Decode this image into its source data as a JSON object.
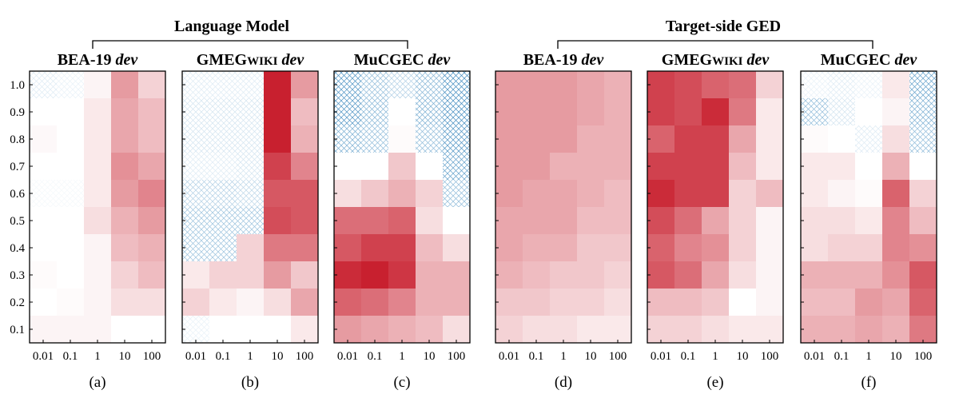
{
  "group_titles": [
    "Language Model",
    "Target-side GED"
  ],
  "chart_data": [
    {
      "type": "heatmap",
      "panel_label": "(a)",
      "title_main": "BEA-19",
      "title_small": "",
      "title_italic": "dev",
      "x_categories": [
        "0.01",
        "0.1",
        "1",
        "10",
        "100"
      ],
      "y_categories": [
        "1.0",
        "0.9",
        "0.8",
        "0.7",
        "0.6",
        "0.5",
        "0.4",
        "0.3",
        "0.2",
        "0.1"
      ],
      "values": [
        [
          -0.15,
          -0.1,
          0.05,
          0.45,
          0.2
        ],
        [
          0.0,
          0.0,
          0.1,
          0.4,
          0.3
        ],
        [
          0.03,
          0.0,
          0.1,
          0.4,
          0.3
        ],
        [
          0.0,
          0.0,
          0.1,
          0.5,
          0.4
        ],
        [
          -0.05,
          -0.05,
          0.1,
          0.45,
          0.55
        ],
        [
          0.0,
          0.0,
          0.15,
          0.35,
          0.45
        ],
        [
          0.0,
          0.0,
          0.05,
          0.3,
          0.35
        ],
        [
          0.02,
          0.0,
          0.05,
          0.2,
          0.3
        ],
        [
          0.0,
          0.02,
          0.05,
          0.15,
          0.15
        ],
        [
          0.05,
          0.05,
          0.05,
          0.0,
          0.0
        ]
      ]
    },
    {
      "type": "heatmap",
      "panel_label": "(b)",
      "title_main": "GMEG",
      "title_small": "WIKI",
      "title_italic": "dev",
      "x_categories": [
        "0.01",
        "0.1",
        "1",
        "10",
        "100"
      ],
      "y_categories": [
        "1.0",
        "0.9",
        "0.8",
        "0.7",
        "0.6",
        "0.5",
        "0.4",
        "0.3",
        "0.2",
        "0.1"
      ],
      "values": [
        [
          -0.15,
          -0.15,
          -0.15,
          1.0,
          0.45
        ],
        [
          -0.2,
          -0.2,
          -0.2,
          1.05,
          0.3
        ],
        [
          -0.2,
          -0.2,
          -0.2,
          1.05,
          0.35
        ],
        [
          -0.15,
          -0.15,
          -0.2,
          0.85,
          0.55
        ],
        [
          -0.35,
          -0.35,
          -0.3,
          0.75,
          0.75
        ],
        [
          -0.45,
          -0.45,
          -0.45,
          0.8,
          0.75
        ],
        [
          -0.45,
          -0.45,
          0.2,
          0.6,
          0.6
        ],
        [
          0.1,
          0.2,
          0.2,
          0.45,
          0.25
        ],
        [
          0.2,
          0.1,
          0.05,
          0.15,
          0.4
        ],
        [
          -0.1,
          0.0,
          0.0,
          0.0,
          0.1
        ]
      ]
    },
    {
      "type": "heatmap",
      "panel_label": "(c)",
      "title_main": "MuCGEC",
      "title_small": "",
      "title_italic": "dev",
      "x_categories": [
        "0.01",
        "0.1",
        "1",
        "10",
        "100"
      ],
      "y_categories": [
        "1.0",
        "0.9",
        "0.8",
        "0.7",
        "0.6",
        "0.5",
        "0.4",
        "0.3",
        "0.2",
        "0.1"
      ],
      "values": [
        [
          -0.8,
          -0.5,
          -0.35,
          -0.55,
          -0.85
        ],
        [
          -0.8,
          -0.55,
          0.0,
          -0.6,
          -0.85
        ],
        [
          -0.6,
          -0.5,
          0.02,
          -0.5,
          -0.8
        ],
        [
          0.0,
          0.0,
          0.25,
          0.0,
          -0.7
        ],
        [
          0.15,
          0.25,
          0.35,
          0.2,
          -0.5
        ],
        [
          0.65,
          0.65,
          0.7,
          0.15,
          0.0
        ],
        [
          0.75,
          0.85,
          0.85,
          0.3,
          0.15
        ],
        [
          0.95,
          1.0,
          0.9,
          0.35,
          0.35
        ],
        [
          0.7,
          0.65,
          0.55,
          0.35,
          0.35
        ],
        [
          0.45,
          0.4,
          0.35,
          0.3,
          0.15
        ]
      ]
    },
    {
      "type": "heatmap",
      "panel_label": "(d)",
      "title_main": "BEA-19",
      "title_small": "",
      "title_italic": "dev",
      "x_categories": [
        "0.01",
        "0.1",
        "1",
        "10",
        "100"
      ],
      "y_categories": [
        "1.0",
        "0.9",
        "0.8",
        "0.7",
        "0.6",
        "0.5",
        "0.4",
        "0.3",
        "0.2",
        "0.1"
      ],
      "values": [
        [
          0.45,
          0.45,
          0.45,
          0.4,
          0.35
        ],
        [
          0.45,
          0.45,
          0.45,
          0.4,
          0.35
        ],
        [
          0.45,
          0.45,
          0.45,
          0.35,
          0.35
        ],
        [
          0.45,
          0.45,
          0.35,
          0.35,
          0.35
        ],
        [
          0.45,
          0.4,
          0.4,
          0.35,
          0.3
        ],
        [
          0.4,
          0.4,
          0.4,
          0.3,
          0.3
        ],
        [
          0.4,
          0.35,
          0.35,
          0.25,
          0.25
        ],
        [
          0.35,
          0.3,
          0.25,
          0.25,
          0.2
        ],
        [
          0.25,
          0.25,
          0.2,
          0.2,
          0.15
        ],
        [
          0.2,
          0.15,
          0.15,
          0.1,
          0.1
        ]
      ]
    },
    {
      "type": "heatmap",
      "panel_label": "(e)",
      "title_main": "GMEG",
      "title_small": "WIKI",
      "title_italic": "dev",
      "x_categories": [
        "0.01",
        "0.1",
        "1",
        "10",
        "100"
      ],
      "y_categories": [
        "1.0",
        "0.9",
        "0.8",
        "0.7",
        "0.6",
        "0.5",
        "0.4",
        "0.3",
        "0.2",
        "0.1"
      ],
      "values": [
        [
          0.85,
          0.8,
          0.7,
          0.65,
          0.2
        ],
        [
          0.85,
          0.8,
          0.95,
          0.6,
          0.1
        ],
        [
          0.7,
          0.85,
          0.85,
          0.4,
          0.1
        ],
        [
          0.85,
          0.85,
          0.85,
          0.3,
          0.1
        ],
        [
          0.95,
          0.85,
          0.85,
          0.2,
          0.3
        ],
        [
          0.8,
          0.65,
          0.4,
          0.2,
          0.05
        ],
        [
          0.7,
          0.55,
          0.5,
          0.2,
          0.05
        ],
        [
          0.75,
          0.65,
          0.4,
          0.15,
          0.05
        ],
        [
          0.3,
          0.3,
          0.25,
          0.0,
          0.05
        ],
        [
          0.2,
          0.2,
          0.15,
          0.1,
          0.1
        ]
      ]
    },
    {
      "type": "heatmap",
      "panel_label": "(f)",
      "title_main": "MuCGEC",
      "title_small": "",
      "title_italic": "dev",
      "x_categories": [
        "0.01",
        "0.1",
        "1",
        "10",
        "100"
      ],
      "y_categories": [
        "1.0",
        "0.9",
        "0.8",
        "0.7",
        "0.6",
        "0.5",
        "0.4",
        "0.3",
        "0.2",
        "0.1"
      ],
      "values": [
        [
          -0.1,
          -0.15,
          -0.1,
          0.1,
          -0.7
        ],
        [
          -0.5,
          -0.2,
          0.0,
          0.05,
          -0.6
        ],
        [
          0.02,
          0.0,
          -0.15,
          0.15,
          -0.5
        ],
        [
          0.1,
          0.1,
          0.0,
          0.35,
          0.0
        ],
        [
          0.1,
          0.05,
          0.02,
          0.7,
          0.2
        ],
        [
          0.15,
          0.15,
          0.1,
          0.55,
          0.3
        ],
        [
          0.15,
          0.2,
          0.2,
          0.55,
          0.5
        ],
        [
          0.35,
          0.35,
          0.35,
          0.5,
          0.75
        ],
        [
          0.3,
          0.3,
          0.45,
          0.4,
          0.7
        ],
        [
          0.35,
          0.35,
          0.4,
          0.35,
          0.6
        ]
      ]
    }
  ],
  "colors": {
    "positive": "#c8202f",
    "negative_hatch": "#1f77b4",
    "frame": "#000000"
  }
}
